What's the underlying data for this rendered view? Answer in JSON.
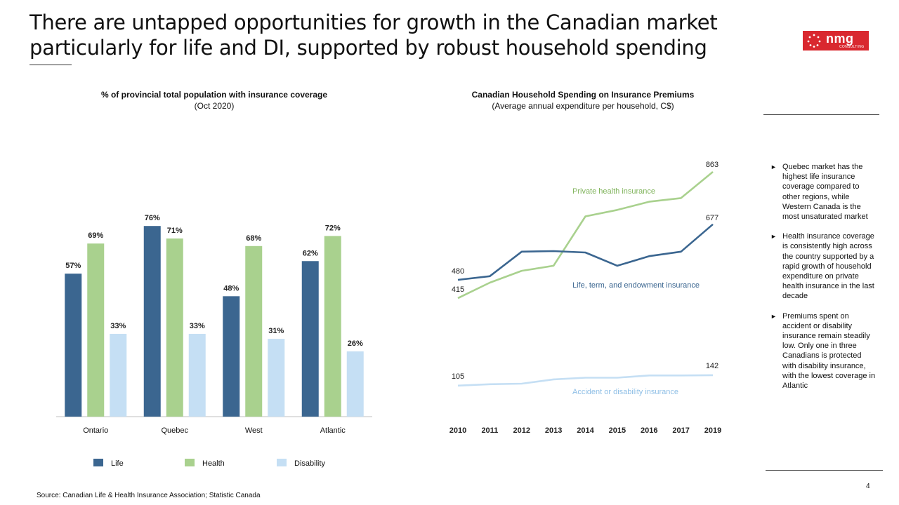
{
  "slide": {
    "title": "There are untapped opportunities for growth in the Canadian market particularly for life and DI, supported by robust household spending",
    "logo_text": "nmg",
    "logo_subtext": "CONSULTING",
    "source": "Source: Canadian Life & Health Insurance Association; Statistic Canada",
    "page_number": "4"
  },
  "bullets": [
    "Quebec market has the highest life insurance coverage compared to other regions, while Western Canada is the most unsaturated market",
    "Health insurance coverage is consistently high across the country supported by a rapid growth of household expenditure on private health insurance in the last decade",
    "Premiums spent on accident or disability insurance remain steadily low. Only one in three Canadians is protected with disability insurance, with the lowest coverage in Atlantic"
  ],
  "chart_data": [
    {
      "type": "bar",
      "title": "% of provincial total population with insurance coverage",
      "subtitle": "(Oct 2020)",
      "categories": [
        "Ontario",
        "Quebec",
        "West",
        "Atlantic"
      ],
      "series": [
        {
          "name": "Life",
          "values": [
            57,
            76,
            48,
            62
          ],
          "color": "#3b6690"
        },
        {
          "name": "Health",
          "values": [
            69,
            71,
            68,
            72
          ],
          "color": "#a9d18e"
        },
        {
          "name": "Disability",
          "values": [
            33,
            33,
            31,
            26
          ],
          "color": "#c5dff4"
        }
      ],
      "unit": "%",
      "ylim": [
        0,
        85
      ],
      "legend_position": "bottom"
    },
    {
      "type": "line",
      "title": "Canadian Household Spending on Insurance Premiums",
      "subtitle": "(Average annual expenditure per household, C$)",
      "x": [
        "2010",
        "2011",
        "2012",
        "2013",
        "2014",
        "2015",
        "2016",
        "2017",
        "2019"
      ],
      "series": [
        {
          "name": "Private health insurance",
          "values": [
            415,
            470,
            512,
            530,
            705,
            728,
            757,
            770,
            863
          ],
          "color": "#a9d18e",
          "start_label": "415",
          "end_label": "863"
        },
        {
          "name": "Life, term, and endowment  insurance",
          "values": [
            480,
            493,
            580,
            582,
            577,
            530,
            564,
            580,
            677
          ],
          "color": "#3b6690",
          "start_label": "480",
          "end_label": "677"
        },
        {
          "name": "Accident or disability insurance",
          "values": [
            105,
            110,
            112,
            127,
            133,
            133,
            141,
            141,
            142
          ],
          "color": "#c5dff4",
          "start_label": "105",
          "end_label": "142"
        }
      ],
      "ylim": [
        0,
        950
      ]
    }
  ]
}
